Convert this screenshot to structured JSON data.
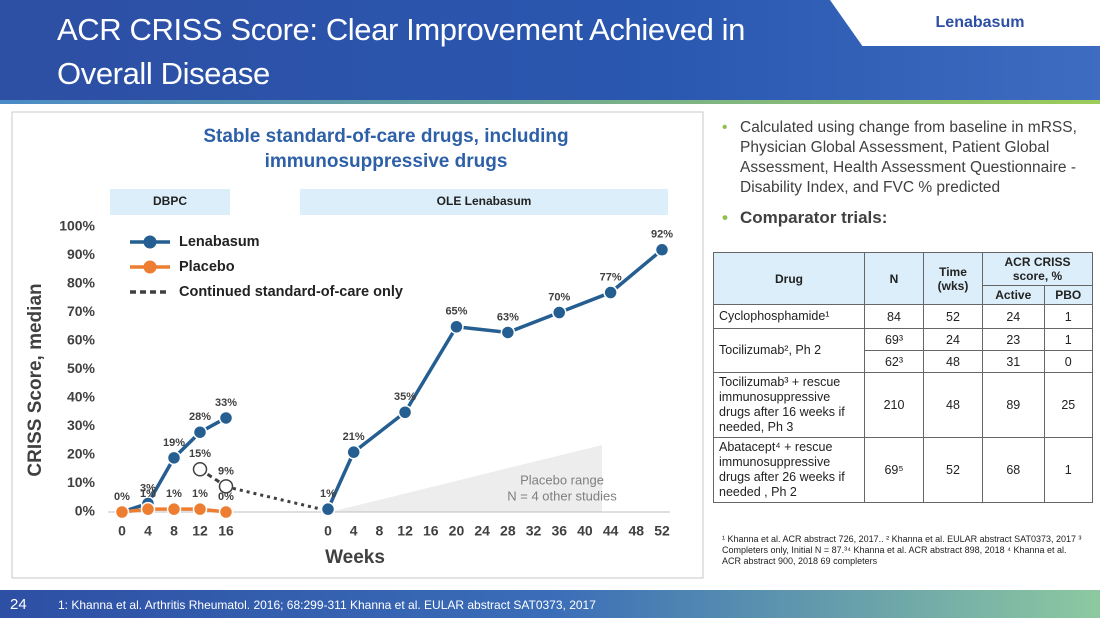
{
  "header": {
    "title": "ACR CRISS Score: Clear Improvement Achieved in Overall Disease",
    "tag": "Lenabasum"
  },
  "chart_data": [
    {
      "type": "line",
      "title": "Stable standard-of-care drugs, including immunosuppressive drugs",
      "band_label": "DBPC",
      "y_label": "CRISS Score, median",
      "x_label": "Weeks",
      "legend": "upper left",
      "xlim": [
        0,
        16
      ],
      "xticks": [
        0,
        4,
        8,
        12,
        16
      ],
      "ylim": [
        0,
        100
      ],
      "yticks": [
        {
          "value": 0,
          "label": "0%"
        },
        {
          "value": 10,
          "label": "10%"
        },
        {
          "value": 20,
          "label": "20%"
        },
        {
          "value": 30,
          "label": "30%"
        },
        {
          "value": 40,
          "label": "40%"
        },
        {
          "value": 50,
          "label": "50%"
        },
        {
          "value": 60,
          "label": "60%"
        },
        {
          "value": 70,
          "label": "70%"
        },
        {
          "value": 80,
          "label": "80%"
        },
        {
          "value": 90,
          "label": "90%"
        },
        {
          "value": 100,
          "label": "100%"
        }
      ],
      "series": [
        {
          "name": "Lenabasum",
          "color": "#255e91",
          "x": [
            0,
            4,
            8,
            12,
            16
          ],
          "values": [
            0,
            3,
            19,
            28,
            33
          ],
          "value_labels": [
            "0%",
            "3%",
            "19%",
            "28%",
            "33%"
          ]
        },
        {
          "name": "Placebo",
          "color": "#ed7d31",
          "x": [
            0,
            4,
            8,
            12,
            16
          ],
          "values": [
            0,
            1,
            1,
            1,
            0
          ],
          "value_labels": [
            null,
            "1%",
            "1%",
            "1%",
            "0%"
          ]
        },
        {
          "name": "Continued standard-of-care only",
          "color": "#404040",
          "line_style": "dashed",
          "marker_fill": "#ffffff",
          "x": [
            12,
            16
          ],
          "values": [
            15,
            9
          ],
          "value_labels": [
            "15%",
            "9%"
          ]
        }
      ]
    },
    {
      "type": "line",
      "band_label": "OLE Lenabasum",
      "xlim": [
        0,
        52
      ],
      "xticks": [
        0,
        4,
        8,
        12,
        16,
        20,
        24,
        28,
        32,
        36,
        40,
        44,
        48,
        52
      ],
      "ylim": [
        0,
        100
      ],
      "annotation": [
        "Placebo range",
        "N = 4 other studies"
      ],
      "series": [
        {
          "color": "#255e91",
          "x": [
            0,
            4,
            12,
            20,
            28,
            36,
            44,
            52
          ],
          "values": [
            1,
            21,
            35,
            65,
            63,
            70,
            77,
            92
          ],
          "value_labels": [
            "1%",
            "21%",
            "35%",
            "65%",
            "63%",
            "70%",
            "77%",
            "92%"
          ]
        }
      ]
    }
  ],
  "bullets": [
    "Calculated using change from baseline in mRSS, Physician Global Assessment, Patient Global Assessment, Health Assessment Questionnaire - Disability Index, and FVC % predicted",
    "Comparator trials:"
  ],
  "table": {
    "header": [
      "Drug",
      "N",
      "Time (wks)",
      "ACR CRISS score, %",
      "Active",
      "PBO"
    ],
    "rows": [
      [
        "Cyclophosphamide¹",
        "84",
        "52",
        "24",
        "1"
      ],
      [
        "Tocilizumab², Ph 2",
        "69³",
        "24",
        "23",
        "1"
      ],
      [
        "62³",
        "48",
        "31",
        "0"
      ],
      [
        "Tocilizumab³ + rescue immunosuppressive drugs after 16 weeks if needed, Ph 3",
        "210",
        "48",
        "89",
        "25"
      ],
      [
        "Abatacept⁴ + rescue immunosuppressive drugs after 26 weeks if needed , Ph 2",
        "69⁵",
        "52",
        "68",
        "1"
      ]
    ]
  },
  "footnote": "¹ Khanna et al. ACR abstract 726, 2017.. ² Khanna et al. EULAR abstract SAT0373, 2017 ³ Completers only, Initial N = 87.³⁴ Khanna et al. ACR abstract 898, 2018 ⁴ Khanna et al. ACR abstract 900, 2018 69 completers",
  "footer": {
    "page": "24",
    "text": "1: Khanna et al. Arthritis Rheumatol. 2016; 68:299-311 Khanna et al. EULAR abstract SAT0373, 2017"
  }
}
